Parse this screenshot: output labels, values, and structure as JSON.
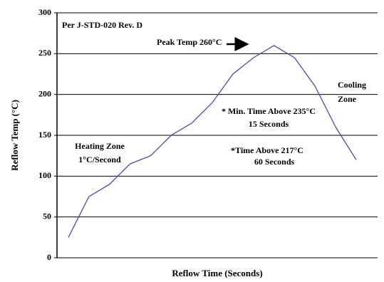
{
  "chart_data": {
    "type": "line",
    "x_label": "Reflow Time (Seconds)",
    "y_label": "Reflow Temp (°C)",
    "categories": [
      null,
      null,
      null,
      null,
      null,
      null,
      null,
      null,
      null,
      null,
      null,
      null,
      null,
      null,
      null
    ],
    "values": [
      25,
      75,
      90,
      115,
      125,
      150,
      165,
      190,
      225,
      245,
      260,
      245,
      210,
      160,
      120
    ],
    "color": "#4b4bb0",
    "ylim": [
      0,
      300
    ],
    "yticks": [
      0,
      50,
      100,
      150,
      200,
      250,
      300
    ],
    "grid": true,
    "annotations": [
      "Per J-STD-020 Rev. D",
      "Peak Temp 260°C",
      "Cooling",
      "Zone",
      "* Min. Time Above 235°C",
      "15 Seconds",
      "*Time Above 217°C",
      "60 Seconds",
      "Heating Zone",
      "1°C/Second"
    ]
  }
}
